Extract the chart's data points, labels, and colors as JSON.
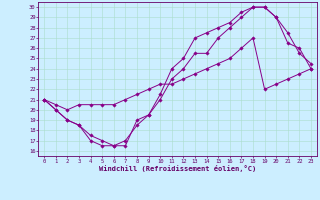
{
  "xlabel": "Windchill (Refroidissement éolien,°C)",
  "background_color": "#cceeff",
  "grid_color": "#aaddcc",
  "line_color": "#880088",
  "xlim": [
    -0.5,
    23.5
  ],
  "ylim": [
    15.5,
    30.5
  ],
  "xticks": [
    0,
    1,
    2,
    3,
    4,
    5,
    6,
    7,
    8,
    9,
    10,
    11,
    12,
    13,
    14,
    15,
    16,
    17,
    18,
    19,
    20,
    21,
    22,
    23
  ],
  "yticks": [
    16,
    17,
    18,
    19,
    20,
    21,
    22,
    23,
    24,
    25,
    26,
    27,
    28,
    29,
    30
  ],
  "line1_x": [
    0,
    1,
    2,
    3,
    4,
    5,
    6,
    7,
    8,
    9,
    10,
    11,
    12,
    13,
    14,
    15,
    16,
    17,
    18,
    19,
    20,
    21,
    22,
    23
  ],
  "line1_y": [
    21.0,
    20.0,
    19.0,
    18.5,
    17.0,
    16.5,
    16.5,
    16.5,
    19.0,
    19.5,
    21.0,
    23.0,
    24.0,
    25.5,
    25.5,
    27.0,
    28.0,
    29.0,
    30.0,
    30.0,
    29.0,
    26.5,
    26.0,
    24.0
  ],
  "line2_x": [
    0,
    1,
    2,
    3,
    4,
    5,
    6,
    7,
    8,
    9,
    10,
    11,
    12,
    13,
    14,
    15,
    16,
    17,
    18,
    19,
    20,
    21,
    22,
    23
  ],
  "line2_y": [
    21.0,
    20.5,
    20.0,
    20.5,
    20.5,
    20.5,
    20.5,
    21.0,
    21.5,
    22.0,
    22.5,
    22.5,
    23.0,
    23.5,
    24.0,
    24.5,
    25.0,
    26.0,
    27.0,
    22.0,
    22.5,
    23.0,
    23.5,
    24.0
  ],
  "line3_x": [
    0,
    1,
    2,
    3,
    4,
    5,
    6,
    7,
    8,
    9,
    10,
    11,
    12,
    13,
    14,
    15,
    16,
    17,
    18,
    19,
    20,
    21,
    22,
    23
  ],
  "line3_y": [
    21.0,
    20.0,
    19.0,
    18.5,
    17.5,
    17.0,
    16.5,
    17.0,
    18.5,
    19.5,
    21.5,
    24.0,
    25.0,
    27.0,
    27.5,
    28.0,
    28.5,
    29.5,
    30.0,
    30.0,
    29.0,
    27.5,
    25.5,
    24.5
  ]
}
